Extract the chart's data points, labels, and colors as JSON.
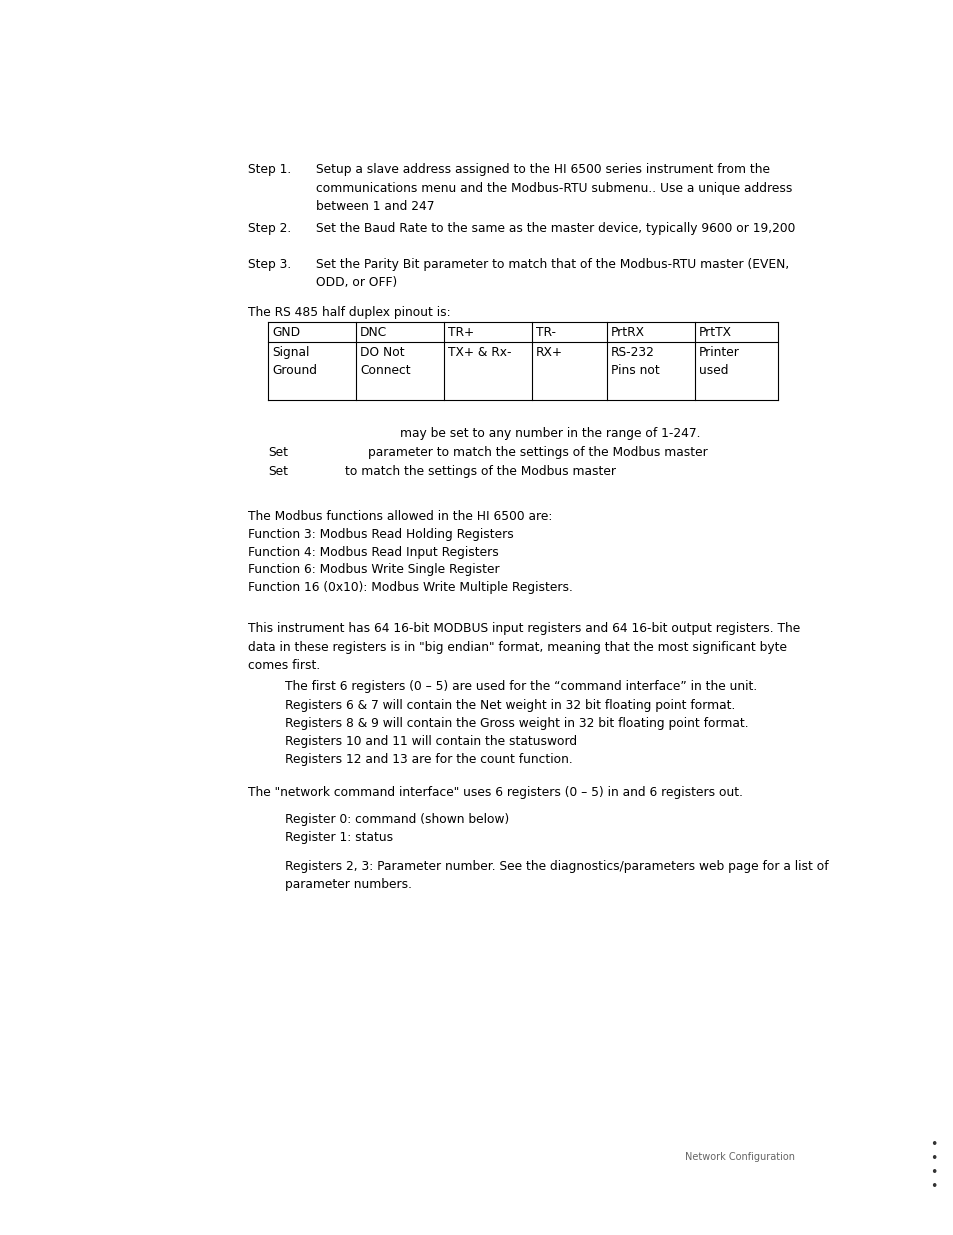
{
  "bg_color": "#ffffff",
  "step1_label": "Step 1.",
  "step1_text_line1": "Setup a slave address assigned to the HI 6500 series instrument from the",
  "step1_text_line2": "communications menu and the Modbus-RTU submenu.. Use a unique address",
  "step1_text_line3": "between 1 and 247",
  "step2_label": "Step 2.",
  "step2_text": "Set the Baud Rate to the same as the master device, typically 9600 or 19,200",
  "step3_label": "Step 3.",
  "step3_text_line1": "Set the Parity Bit parameter to match that of the Modbus-RTU master (EVEN,",
  "step3_text_line2": "ODD, or OFF)",
  "rs485_intro": "The RS 485 half duplex pinout is:",
  "table_headers": [
    "GND",
    "DNC",
    "TR+",
    "TR-",
    "PrtRX",
    "PrtTX"
  ],
  "table_row_line1": [
    "Signal",
    "DO Not",
    "TX+ & Rx-",
    "RX+",
    "RS-232",
    "Printer"
  ],
  "table_row_line2": [
    "Ground",
    "Connect",
    "",
    "",
    "Pins not",
    "used"
  ],
  "mid_line1": "may be set to any number in the range of 1-247.",
  "mid_line2_label": "Set",
  "mid_line2_text": "parameter to match the settings of the Modbus master",
  "mid_line3_label": "Set",
  "mid_line3_text": "to match the settings of the Modbus master",
  "functions_intro": "The Modbus functions allowed in the HI 6500 are:",
  "function3": "Function 3: Modbus Read Holding Registers",
  "function4": "Function 4: Modbus Read Input Registers",
  "function6": "Function 6: Modbus Write Single Register",
  "function16": "Function 16 (0x10): Modbus Write Multiple Registers.",
  "registers_intro_line1": "This instrument has 64 16-bit MODBUS input registers and 64 16-bit output registers. The",
  "registers_intro_line2": "data in these registers is in \"big endian\" format, meaning that the most significant byte",
  "registers_intro_line3": "comes first.",
  "reg_bullet1": "The first 6 registers (0 – 5) are used for the “command interface” in the unit.",
  "reg_bullet2": "Registers 6 & 7 will contain the Net weight in 32 bit floating point format.",
  "reg_bullet3": "Registers 8 & 9 will contain the Gross weight in 32 bit floating point format.",
  "reg_bullet4": "Registers 10 and 11 will contain the statusword",
  "reg_bullet5": "Registers 12 and 13 are for the count function.",
  "network_intro": "The \"network command interface\" uses 6 registers (0 – 5) in and 6 registers out.",
  "net_reg0": "Register 0: command (shown below)",
  "net_reg1": "Register 1: status",
  "net_reg23_line1": "Registers 2, 3: Parameter number. See the diagnostics/parameters web page for a list of",
  "net_reg23_line2": "parameter numbers.",
  "footer_text": "Network Configuration",
  "dots": [
    "•",
    "•",
    "•",
    "•"
  ]
}
